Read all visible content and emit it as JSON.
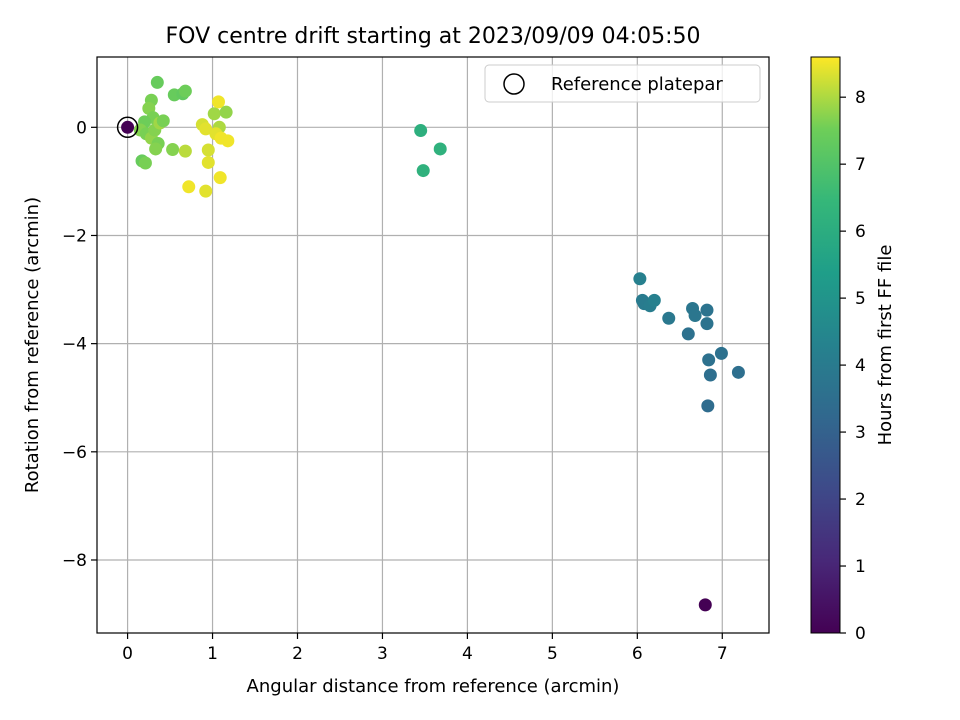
{
  "chart_data": {
    "type": "scatter",
    "title": "FOV centre drift starting at 2023/09/09 04:05:50",
    "xlabel": "Angular distance from reference (arcmin)",
    "ylabel": "Rotation from reference (arcmin)",
    "xlim": [
      -0.36,
      7.55
    ],
    "ylim": [
      -9.35,
      1.3
    ],
    "xticks": [
      0,
      1,
      2,
      3,
      4,
      5,
      6,
      7
    ],
    "yticks": [
      0,
      -2,
      -4,
      -6,
      -8
    ],
    "xtick_labels": [
      "0",
      "1",
      "2",
      "3",
      "4",
      "5",
      "6",
      "7"
    ],
    "ytick_labels": [
      "0",
      "−2",
      "−4",
      "−6",
      "−8"
    ],
    "grid": true,
    "legend": {
      "position": "top-right",
      "entries": [
        "Reference platepar"
      ]
    },
    "reference_point": {
      "x": 0,
      "y": 0
    },
    "colorbar": {
      "label": "Hours from first FF file",
      "range": [
        0,
        8.6
      ],
      "ticks": [
        0,
        1,
        2,
        3,
        4,
        5,
        6,
        7,
        8
      ],
      "tick_labels": [
        "0",
        "1",
        "2",
        "3",
        "4",
        "5",
        "6",
        "7",
        "8"
      ],
      "colormap": "viridis"
    },
    "color_value_label": "hours",
    "points": [
      {
        "x": 0.0,
        "y": 0.0,
        "h": 0.0
      },
      {
        "x": 6.8,
        "y": -8.83,
        "h": 0.0
      },
      {
        "x": 6.03,
        "y": -2.8,
        "h": 4.2
      },
      {
        "x": 6.06,
        "y": -3.2,
        "h": 4.0
      },
      {
        "x": 6.08,
        "y": -3.26,
        "h": 4.0
      },
      {
        "x": 6.15,
        "y": -3.3,
        "h": 4.1
      },
      {
        "x": 6.2,
        "y": -3.2,
        "h": 4.2
      },
      {
        "x": 6.37,
        "y": -3.53,
        "h": 3.9
      },
      {
        "x": 6.6,
        "y": -3.82,
        "h": 3.6
      },
      {
        "x": 6.65,
        "y": -3.35,
        "h": 3.8
      },
      {
        "x": 6.68,
        "y": -3.48,
        "h": 3.8
      },
      {
        "x": 6.82,
        "y": -3.38,
        "h": 3.7
      },
      {
        "x": 6.82,
        "y": -3.63,
        "h": 3.7
      },
      {
        "x": 6.84,
        "y": -4.3,
        "h": 3.6
      },
      {
        "x": 6.86,
        "y": -4.58,
        "h": 3.5
      },
      {
        "x": 6.99,
        "y": -4.18,
        "h": 3.6
      },
      {
        "x": 7.19,
        "y": -4.53,
        "h": 3.5
      },
      {
        "x": 6.83,
        "y": -5.15,
        "h": 3.4
      },
      {
        "x": 3.45,
        "y": -0.06,
        "h": 6.1
      },
      {
        "x": 3.68,
        "y": -0.4,
        "h": 6.2
      },
      {
        "x": 3.48,
        "y": -0.8,
        "h": 6.2
      },
      {
        "x": 0.35,
        "y": 0.83,
        "h": 7.4
      },
      {
        "x": 0.28,
        "y": 0.5,
        "h": 7.6
      },
      {
        "x": 0.55,
        "y": 0.6,
        "h": 7.4
      },
      {
        "x": 0.65,
        "y": 0.62,
        "h": 7.3
      },
      {
        "x": 0.68,
        "y": 0.67,
        "h": 7.5
      },
      {
        "x": 0.25,
        "y": 0.35,
        "h": 7.7
      },
      {
        "x": 0.3,
        "y": 0.18,
        "h": 7.6
      },
      {
        "x": 0.2,
        "y": 0.1,
        "h": 7.5
      },
      {
        "x": 0.15,
        "y": -0.05,
        "h": 7.7
      },
      {
        "x": 0.22,
        "y": -0.12,
        "h": 7.6
      },
      {
        "x": 0.28,
        "y": -0.2,
        "h": 7.8
      },
      {
        "x": 0.32,
        "y": -0.05,
        "h": 7.7
      },
      {
        "x": 0.38,
        "y": 0.08,
        "h": 7.9
      },
      {
        "x": 0.42,
        "y": 0.12,
        "h": 7.6
      },
      {
        "x": 0.36,
        "y": -0.3,
        "h": 7.6
      },
      {
        "x": 0.33,
        "y": -0.4,
        "h": 7.7
      },
      {
        "x": 0.17,
        "y": -0.62,
        "h": 7.4
      },
      {
        "x": 0.21,
        "y": -0.66,
        "h": 7.6
      },
      {
        "x": 0.53,
        "y": -0.41,
        "h": 7.7
      },
      {
        "x": 0.68,
        "y": -0.44,
        "h": 8.1
      },
      {
        "x": 0.88,
        "y": 0.05,
        "h": 8.3
      },
      {
        "x": 0.92,
        "y": -0.03,
        "h": 8.4
      },
      {
        "x": 1.02,
        "y": 0.25,
        "h": 7.9
      },
      {
        "x": 1.07,
        "y": 0.47,
        "h": 8.5
      },
      {
        "x": 1.16,
        "y": 0.28,
        "h": 7.8
      },
      {
        "x": 1.08,
        "y": 0.0,
        "h": 8.0
      },
      {
        "x": 1.04,
        "y": -0.12,
        "h": 8.4
      },
      {
        "x": 1.1,
        "y": -0.2,
        "h": 8.5
      },
      {
        "x": 1.18,
        "y": -0.25,
        "h": 8.5
      },
      {
        "x": 0.95,
        "y": -0.42,
        "h": 8.3
      },
      {
        "x": 0.95,
        "y": -0.65,
        "h": 8.4
      },
      {
        "x": 1.09,
        "y": -0.93,
        "h": 8.5
      },
      {
        "x": 0.72,
        "y": -1.1,
        "h": 8.5
      },
      {
        "x": 0.92,
        "y": -1.18,
        "h": 8.4
      }
    ]
  }
}
